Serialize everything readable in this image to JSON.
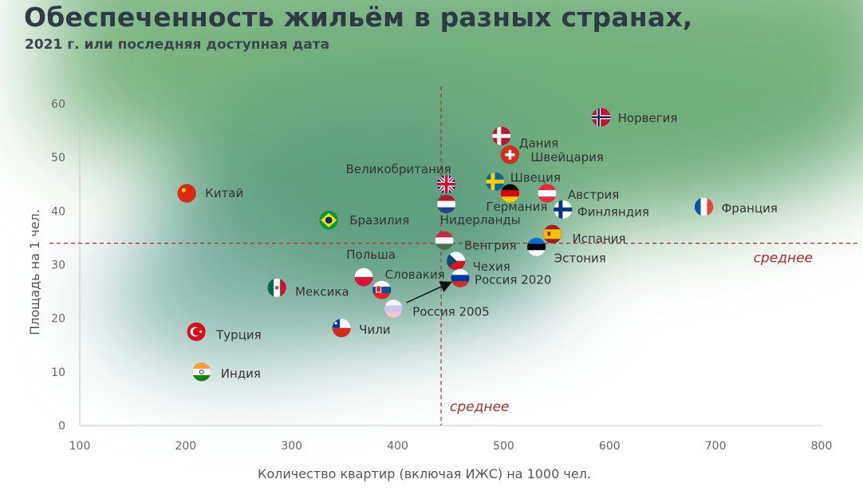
{
  "title": "Обеспеченность жильём в разных странах,",
  "subtitle": "2021 г. или последняя доступная дата",
  "chart_data": {
    "type": "scatter",
    "xlabel": "Количество квартир (включая ИЖС) на 1000 чел.",
    "ylabel": "Площадь на 1 чел.",
    "xlim": [
      100,
      800
    ],
    "ylim": [
      0,
      60
    ],
    "xticks": [
      "100",
      "200",
      "300",
      "400",
      "500",
      "600",
      "700",
      "800"
    ],
    "yticks": [
      "0",
      "10",
      "20",
      "30",
      "40",
      "50",
      "60"
    ],
    "mean_x": 441,
    "mean_y": 34,
    "mean_x_label": "среднее",
    "mean_y_label": "среднее",
    "points": [
      {
        "name": "Норвегия",
        "x": 592,
        "y": 57.5,
        "icon": "norway-flag-icon"
      },
      {
        "name": "Дания",
        "x": 498,
        "y": 54,
        "icon": "denmark-flag-icon"
      },
      {
        "name": "Швейцария",
        "x": 506,
        "y": 50.5,
        "icon": "switzerland-flag-icon"
      },
      {
        "name": "Великобритания",
        "x": 446,
        "y": 45,
        "icon": "uk-flag-icon"
      },
      {
        "name": "Швеция",
        "x": 492,
        "y": 45.5,
        "icon": "sweden-flag-icon"
      },
      {
        "name": "Китай",
        "x": 201,
        "y": 43.3,
        "icon": "china-flag-icon"
      },
      {
        "name": "Германия",
        "x": 506,
        "y": 43.3,
        "icon": "germany-flag-icon"
      },
      {
        "name": "Австрия",
        "x": 541,
        "y": 43.3,
        "icon": "austria-flag-icon"
      },
      {
        "name": "Нидерланды",
        "x": 446,
        "y": 41.3,
        "icon": "netherlands-flag-icon"
      },
      {
        "name": "Финляндия",
        "x": 556,
        "y": 40.3,
        "icon": "finland-flag-icon"
      },
      {
        "name": "Франция",
        "x": 689,
        "y": 40.8,
        "icon": "france-flag-icon"
      },
      {
        "name": "Бразилия",
        "x": 335,
        "y": 38.3,
        "icon": "brazil-flag-icon"
      },
      {
        "name": "Испания",
        "x": 546,
        "y": 35.7,
        "icon": "spain-flag-icon"
      },
      {
        "name": "Венгрия",
        "x": 444,
        "y": 34.5,
        "icon": "hungary-flag-icon"
      },
      {
        "name": "Эстония",
        "x": 531,
        "y": 33.3,
        "icon": "estonia-flag-icon"
      },
      {
        "name": "Чехия",
        "x": 455,
        "y": 30.7,
        "icon": "czechia-flag-icon"
      },
      {
        "name": "Польша",
        "x": 368,
        "y": 27.7,
        "icon": "poland-flag-icon"
      },
      {
        "name": "Россия 2020",
        "x": 459,
        "y": 27.5,
        "icon": "russia-flag-icon"
      },
      {
        "name": "Словакия",
        "x": 385,
        "y": 25.3,
        "icon": "slovakia-flag-icon"
      },
      {
        "name": "Мексика",
        "x": 286,
        "y": 25.7,
        "icon": "mexico-flag-icon"
      },
      {
        "name": "Россия 2005",
        "x": 396,
        "y": 21.8,
        "icon": "russia-2005-flag-icon"
      },
      {
        "name": "Чили",
        "x": 347,
        "y": 18.2,
        "icon": "chile-flag-icon"
      },
      {
        "name": "Турция",
        "x": 210,
        "y": 17.5,
        "icon": "turkey-flag-icon"
      },
      {
        "name": "Индия",
        "x": 215,
        "y": 10,
        "icon": "india-flag-icon"
      }
    ],
    "arrow": {
      "from": "Россия 2005",
      "to": "Россия 2020"
    }
  }
}
